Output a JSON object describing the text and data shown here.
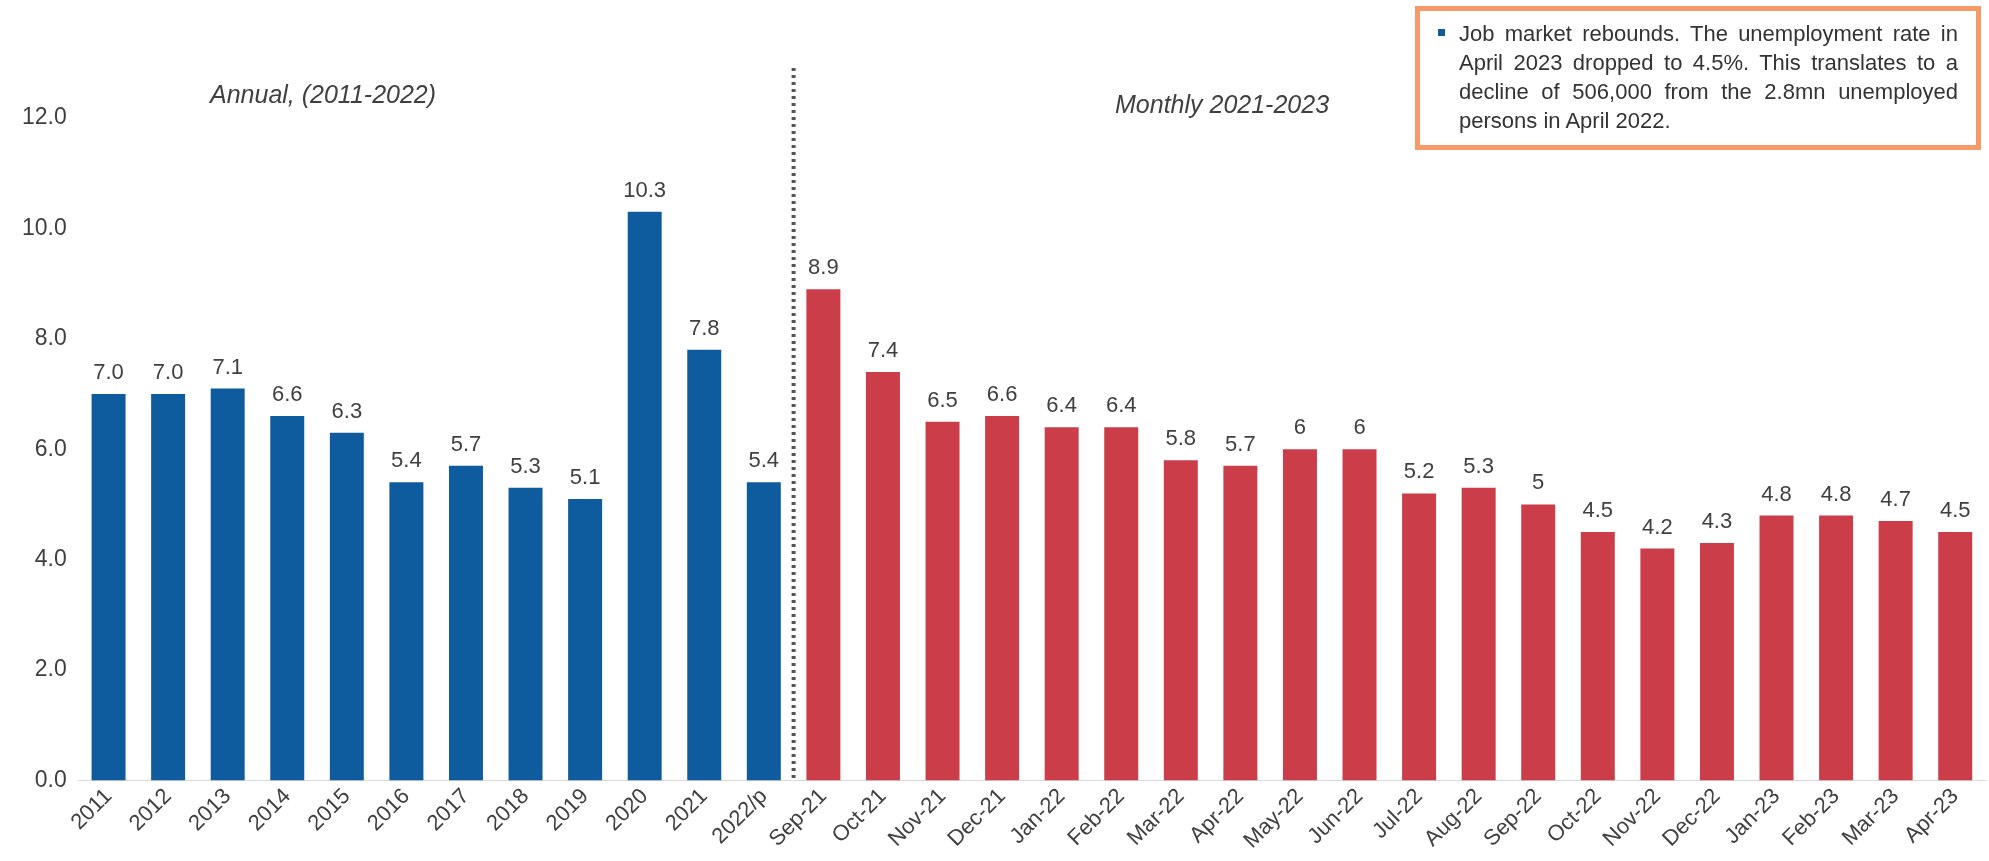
{
  "chart_data": {
    "type": "bar",
    "categories": [
      "2011",
      "2012",
      "2013",
      "2014",
      "2015",
      "2016",
      "2017",
      "2018",
      "2019",
      "2020",
      "2021",
      "2022/p",
      "Sep-21",
      "Oct-21",
      "Nov-21",
      "Dec-21",
      "Jan-22",
      "Feb-22",
      "Mar-22",
      "Apr-22",
      "May-22",
      "Jun-22",
      "Jul-22",
      "Aug-22",
      "Sep-22",
      "Oct-22",
      "Nov-22",
      "Dec-22",
      "Jan-23",
      "Feb-23",
      "Mar-23",
      "Apr-23"
    ],
    "values": [
      7.0,
      7.0,
      7.1,
      6.6,
      6.3,
      5.4,
      5.7,
      5.3,
      5.1,
      10.3,
      7.8,
      5.4,
      8.9,
      7.4,
      6.5,
      6.6,
      6.4,
      6.4,
      5.8,
      5.7,
      6,
      6,
      5.2,
      5.3,
      5,
      4.5,
      4.2,
      4.3,
      4.8,
      4.8,
      4.7,
      4.5
    ],
    "value_labels": [
      "7.0",
      "7.0",
      "7.1",
      "6.6",
      "6.3",
      "5.4",
      "5.7",
      "5.3",
      "5.1",
      "10.3",
      "7.8",
      "5.4",
      "8.9",
      "7.4",
      "6.5",
      "6.6",
      "6.4",
      "6.4",
      "5.8",
      "5.7",
      "6",
      "6",
      "5.2",
      "5.3",
      "5",
      "4.5",
      "4.2",
      "4.3",
      "4.8",
      "4.8",
      "4.7",
      "4.5"
    ],
    "colors": [
      "#0e5c9e",
      "#0e5c9e",
      "#0e5c9e",
      "#0e5c9e",
      "#0e5c9e",
      "#0e5c9e",
      "#0e5c9e",
      "#0e5c9e",
      "#0e5c9e",
      "#0e5c9e",
      "#0e5c9e",
      "#0e5c9e",
      "#cc3d4a",
      "#cc3d4a",
      "#cc3d4a",
      "#cc3d4a",
      "#cc3d4a",
      "#cc3d4a",
      "#cc3d4a",
      "#cc3d4a",
      "#cc3d4a",
      "#cc3d4a",
      "#cc3d4a",
      "#cc3d4a",
      "#cc3d4a",
      "#cc3d4a",
      "#cc3d4a",
      "#cc3d4a",
      "#cc3d4a",
      "#cc3d4a",
      "#cc3d4a",
      "#cc3d4a"
    ],
    "ylim": [
      0,
      12
    ],
    "yticks": [
      {
        "value": 0,
        "label": "0.0"
      },
      {
        "value": 2,
        "label": "2.0"
      },
      {
        "value": 4,
        "label": "4.0"
      },
      {
        "value": 6,
        "label": "6.0"
      },
      {
        "value": 8,
        "label": "8.0"
      },
      {
        "value": 10,
        "label": "10.0"
      },
      {
        "value": 12,
        "label": "12.0"
      }
    ],
    "ref_lines": [
      {
        "axis": "x",
        "value": "Sep-21",
        "line_style": "dotted",
        "color": "#555555"
      }
    ],
    "annotations": [
      "Annual, (2011-2022)",
      "Monthly 2021-2023",
      "Job market rebounds. The unemployment rate in April 2023 dropped to 4.5%. This translates to a decline of 506,000 from the 2.8mn unemployed persons in April 2022."
    ],
    "grid": false,
    "legend": false
  }
}
